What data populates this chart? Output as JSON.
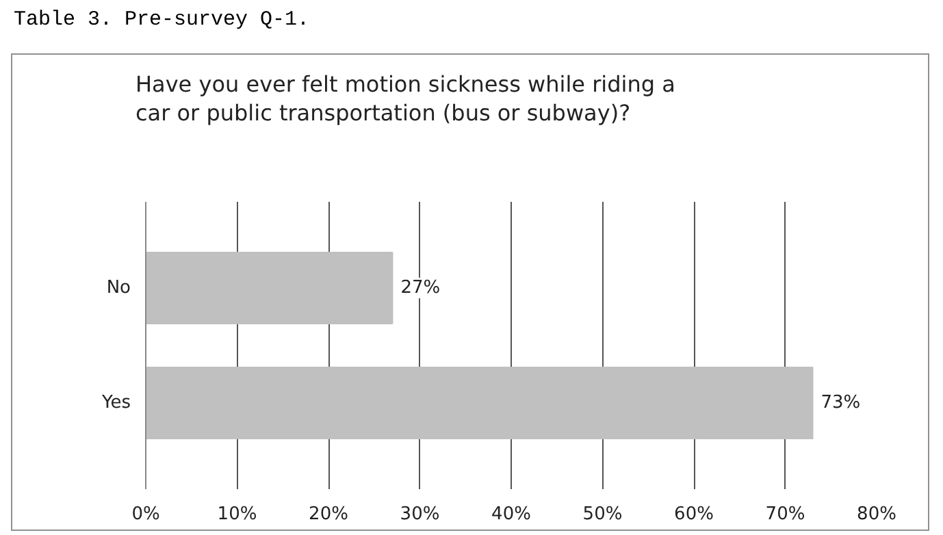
{
  "chart_data": {
    "type": "bar",
    "orientation": "horizontal",
    "title": "Have you ever felt motion sickness while riding a car or public transportation (bus or subway)?",
    "annotations": [
      "Table 3. Pre-survey Q-1."
    ],
    "categories": [
      "No",
      "Yes"
    ],
    "values": [
      27,
      73
    ],
    "value_labels": [
      "27%",
      "73%"
    ],
    "color": "#c0c0c0",
    "xlim": [
      0,
      80
    ],
    "xticks": [
      {
        "value": 0,
        "label": "0%"
      },
      {
        "value": 10,
        "label": "10%"
      },
      {
        "value": 20,
        "label": "20%"
      },
      {
        "value": 30,
        "label": "30%"
      },
      {
        "value": 40,
        "label": "40%"
      },
      {
        "value": 50,
        "label": "50%"
      },
      {
        "value": 60,
        "label": "60%"
      },
      {
        "value": 70,
        "label": "70%"
      },
      {
        "value": 80,
        "label": "80%"
      }
    ],
    "grid": "x"
  }
}
